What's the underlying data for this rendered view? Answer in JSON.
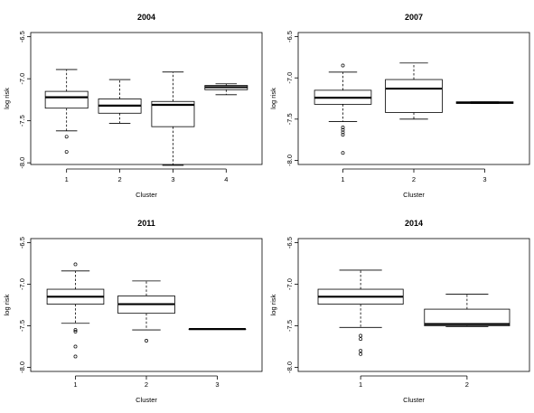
{
  "chart_data": [
    {
      "type": "boxplot",
      "title": "2004",
      "xlabel": "Cluster",
      "ylabel": "log risk",
      "ylim": [
        -8.02,
        -6.45
      ],
      "yticks": [
        "-6.5",
        "-7.0",
        "-7.5",
        "-8.0"
      ],
      "categories": [
        "1",
        "2",
        "3",
        "4"
      ],
      "boxes": [
        {
          "q1": -7.35,
          "median": -7.22,
          "q3": -7.15,
          "whisker_low": -7.62,
          "whisker_high": -6.89,
          "outliers": [
            -7.69,
            -7.87
          ]
        },
        {
          "q1": -7.41,
          "median": -7.32,
          "q3": -7.24,
          "whisker_low": -7.53,
          "whisker_high": -7.01,
          "outliers": []
        },
        {
          "q1": -7.57,
          "median": -7.31,
          "q3": -7.27,
          "whisker_low": -8.03,
          "whisker_high": -6.92,
          "outliers": []
        },
        {
          "q1": -7.13,
          "median": -7.1,
          "q3": -7.08,
          "whisker_low": -7.19,
          "whisker_high": -7.06,
          "outliers": []
        }
      ]
    },
    {
      "type": "boxplot",
      "title": "2007",
      "xlabel": "Cluster",
      "ylabel": "log risk",
      "ylim": [
        -8.05,
        -6.45
      ],
      "yticks": [
        "-6.5",
        "-7.0",
        "-7.5",
        "-8.0"
      ],
      "categories": [
        "1",
        "2",
        "3"
      ],
      "boxes": [
        {
          "q1": -7.32,
          "median": -7.24,
          "q3": -7.15,
          "whisker_low": -7.53,
          "whisker_high": -6.93,
          "outliers": [
            -6.85,
            -7.6,
            -7.63,
            -7.66,
            -7.69,
            -7.91
          ]
        },
        {
          "q1": -7.42,
          "median": -7.13,
          "q3": -7.02,
          "whisker_low": -7.5,
          "whisker_high": -6.82,
          "outliers": []
        },
        {
          "q1": -7.31,
          "median": -7.3,
          "q3": -7.29,
          "whisker_low": -7.31,
          "whisker_high": -7.29,
          "outliers": []
        }
      ]
    },
    {
      "type": "boxplot",
      "title": "2011",
      "xlabel": "Cluster",
      "ylabel": "log risk",
      "ylim": [
        -8.05,
        -6.45
      ],
      "yticks": [
        "-6.5",
        "-7.0",
        "-7.5",
        "-8.0"
      ],
      "categories": [
        "1",
        "2",
        "3"
      ],
      "boxes": [
        {
          "q1": -7.24,
          "median": -7.15,
          "q3": -7.06,
          "whisker_low": -7.47,
          "whisker_high": -6.84,
          "outliers": [
            -6.76,
            -7.55,
            -7.57,
            -7.75,
            -7.87
          ]
        },
        {
          "q1": -7.35,
          "median": -7.24,
          "q3": -7.14,
          "whisker_low": -7.55,
          "whisker_high": -6.96,
          "outliers": [
            -7.68
          ]
        },
        {
          "q1": -7.54,
          "median": -7.54,
          "q3": -7.54,
          "whisker_low": -7.54,
          "whisker_high": -7.54,
          "outliers": []
        }
      ]
    },
    {
      "type": "boxplot",
      "title": "2014",
      "xlabel": "Cluster",
      "ylabel": "log risk",
      "ylim": [
        -8.05,
        -6.45
      ],
      "yticks": [
        "-6.5",
        "-7.0",
        "-7.5",
        "-8.0"
      ],
      "categories": [
        "1",
        "2"
      ],
      "boxes": [
        {
          "q1": -7.24,
          "median": -7.15,
          "q3": -7.06,
          "whisker_low": -7.52,
          "whisker_high": -6.83,
          "outliers": [
            -7.62,
            -7.66,
            -7.8,
            -7.84
          ]
        },
        {
          "q1": -7.5,
          "median": -7.48,
          "q3": -7.3,
          "whisker_low": -7.51,
          "whisker_high": -7.12,
          "outliers": []
        }
      ]
    }
  ]
}
